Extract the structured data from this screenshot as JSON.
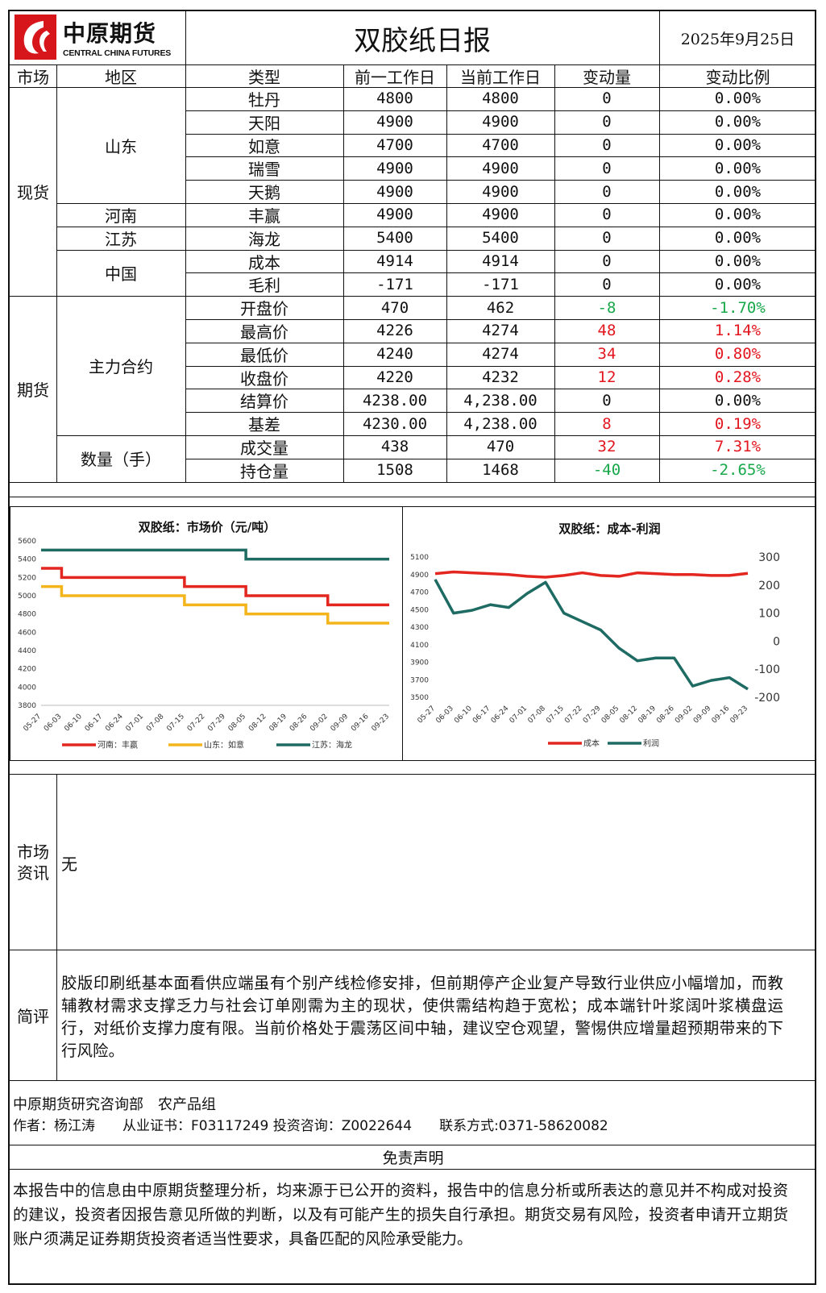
{
  "header": {
    "logo_cn": "中原期货",
    "logo_en": "CENTRAL CHINA FUTURES",
    "title": "双胶纸日报",
    "date": "2025年9月25日"
  },
  "columns": [
    "市场",
    "地区",
    "类型",
    "前一工作日",
    "当前工作日",
    "变动量",
    "变动比例"
  ],
  "spot": {
    "market": "现货",
    "regions": [
      {
        "name": "山东",
        "rows": [
          {
            "type": "牡丹",
            "prev": "4800",
            "curr": "4800",
            "chg": "0",
            "pct": "0.00%",
            "tone": "neutral"
          },
          {
            "type": "天阳",
            "prev": "4900",
            "curr": "4900",
            "chg": "0",
            "pct": "0.00%",
            "tone": "neutral"
          },
          {
            "type": "如意",
            "prev": "4700",
            "curr": "4700",
            "chg": "0",
            "pct": "0.00%",
            "tone": "neutral"
          },
          {
            "type": "瑞雪",
            "prev": "4900",
            "curr": "4900",
            "chg": "0",
            "pct": "0.00%",
            "tone": "neutral"
          },
          {
            "type": "天鹅",
            "prev": "4900",
            "curr": "4900",
            "chg": "0",
            "pct": "0.00%",
            "tone": "neutral"
          }
        ]
      },
      {
        "name": "河南",
        "rows": [
          {
            "type": "丰赢",
            "prev": "4900",
            "curr": "4900",
            "chg": "0",
            "pct": "0.00%",
            "tone": "neutral"
          }
        ]
      },
      {
        "name": "江苏",
        "rows": [
          {
            "type": "海龙",
            "prev": "5400",
            "curr": "5400",
            "chg": "0",
            "pct": "0.00%",
            "tone": "neutral"
          }
        ]
      },
      {
        "name": "中国",
        "rows": [
          {
            "type": "成本",
            "prev": "4914",
            "curr": "4914",
            "chg": "0",
            "pct": "0.00%",
            "tone": "neutral"
          },
          {
            "type": "毛利",
            "prev": "-171",
            "curr": "-171",
            "chg": "0",
            "pct": "0.00%",
            "tone": "neutral"
          }
        ]
      }
    ]
  },
  "futures": {
    "market": "期货",
    "regions": [
      {
        "name": "主力合约",
        "rows": [
          {
            "type": "开盘价",
            "prev": "470",
            "curr": "462",
            "chg": "-8",
            "pct": "-1.70%",
            "tone": "down"
          },
          {
            "type": "最高价",
            "prev": "4226",
            "curr": "4274",
            "chg": "48",
            "pct": "1.14%",
            "tone": "up"
          },
          {
            "type": "最低价",
            "prev": "4240",
            "curr": "4274",
            "chg": "34",
            "pct": "0.80%",
            "tone": "up"
          },
          {
            "type": "收盘价",
            "prev": "4220",
            "curr": "4232",
            "chg": "12",
            "pct": "0.28%",
            "tone": "up"
          },
          {
            "type": "结算价",
            "prev": "4238.00",
            "curr": "4,238.00",
            "chg": "0",
            "pct": "0.00%",
            "tone": "neutral"
          },
          {
            "type": "基差",
            "prev": "4230.00",
            "curr": "4,238.00",
            "chg": "8",
            "pct": "0.19%",
            "tone": "up"
          }
        ]
      },
      {
        "name": "数量（手）",
        "rows": [
          {
            "type": "成交量",
            "prev": "438",
            "curr": "470",
            "chg": "32",
            "pct": "7.31%",
            "tone": "up"
          },
          {
            "type": "持仓量",
            "prev": "1508",
            "curr": "1468",
            "chg": "-40",
            "pct": "-2.65%",
            "tone": "down"
          }
        ]
      }
    ]
  },
  "colors": {
    "up": "#e3161f",
    "down": "#17a84a",
    "neutral": "#111111",
    "logo_red": "#d7161c"
  },
  "chart_data": [
    {
      "type": "line",
      "title": "双胶纸：市场价（元/吨）",
      "x": [
        "05-27",
        "06-03",
        "06-10",
        "06-17",
        "06-24",
        "07-01",
        "07-08",
        "07-15",
        "07-22",
        "07-29",
        "08-05",
        "08-12",
        "08-19",
        "08-26",
        "09-02",
        "09-09",
        "09-16",
        "09-23"
      ],
      "ylim": [
        3800,
        5600
      ],
      "yticks": [
        3800,
        4000,
        4200,
        4400,
        4600,
        4800,
        5000,
        5200,
        5400,
        5600
      ],
      "legend": "bottom",
      "series": [
        {
          "name": "河南：丰赢",
          "color": "#e3261f",
          "values": [
            5300,
            5200,
            5200,
            5200,
            5200,
            5200,
            5200,
            5100,
            5100,
            5100,
            5000,
            5000,
            5000,
            5000,
            4900,
            4900,
            4900,
            4900
          ]
        },
        {
          "name": "山东：如意",
          "color": "#f3b51b",
          "values": [
            5100,
            5000,
            5000,
            5000,
            5000,
            5000,
            5000,
            4900,
            4900,
            4900,
            4800,
            4800,
            4800,
            4800,
            4700,
            4700,
            4700,
            4700
          ]
        },
        {
          "name": "江苏：海龙",
          "color": "#1e6b63",
          "values": [
            5500,
            5500,
            5500,
            5500,
            5500,
            5500,
            5500,
            5500,
            5500,
            5500,
            5400,
            5400,
            5400,
            5400,
            5400,
            5400,
            5400,
            5400
          ]
        }
      ]
    },
    {
      "type": "line",
      "title": "双胶纸：成本-利润",
      "x": [
        "05-27",
        "06-03",
        "06-10",
        "06-17",
        "06-24",
        "07-01",
        "07-08",
        "07-15",
        "07-22",
        "07-29",
        "08-05",
        "08-12",
        "08-19",
        "08-26",
        "09-02",
        "09-09",
        "09-16",
        "09-23"
      ],
      "ylim_left": [
        3500,
        5100
      ],
      "yticks_left": [
        3500,
        3700,
        3900,
        4100,
        4300,
        4500,
        4700,
        4900,
        5100
      ],
      "ylim_right": [
        -200,
        300
      ],
      "yticks_right": [
        -200,
        -100,
        0,
        100,
        200,
        300
      ],
      "legend": "bottom",
      "series": [
        {
          "name": "成本",
          "axis": "left",
          "color": "#e3261f",
          "values": [
            4910,
            4930,
            4920,
            4910,
            4900,
            4880,
            4870,
            4890,
            4920,
            4890,
            4880,
            4920,
            4910,
            4900,
            4900,
            4890,
            4890,
            4914
          ]
        },
        {
          "name": "利润",
          "axis": "right",
          "color": "#1e6b63",
          "values": [
            220,
            100,
            110,
            130,
            120,
            170,
            210,
            100,
            70,
            40,
            -25,
            -70,
            -60,
            -60,
            -160,
            -140,
            -130,
            -171
          ]
        }
      ]
    }
  ],
  "news": {
    "label": "市场资讯",
    "label_l1": "市场",
    "label_l2": "资讯",
    "text": "无"
  },
  "comment": {
    "label": "简评",
    "text": "胶版印刷纸基本面看供应端虽有个别产线检修安排，但前期停产企业复产导致行业供应小幅增加，而教辅教材需求支撑乏力与社会订单刚需为主的现状，使供需结构趋于宽松；成本端针叶浆阔叶浆横盘运行，对纸价支撑力度有限。当前价格处于震荡区间中轴，建议空仓观望，警惕供应增量超预期带来的下行风险。"
  },
  "footer": {
    "dept": "中原期货研究咨询部　农产品组",
    "author": "作者：杨江涛　　从业证书：F03117249 投资咨询：Z0022644　　联系方式:0371-58620082",
    "disclaimer_title": "免责声明",
    "disclaimer": "本报告中的信息由中原期货整理分析，均来源于已公开的资料，报告中的信息分析或所表达的意见并不构成对投资的建议，投资者因报告意见所做的判断，以及有可能产生的损失自行承担。期货交易有风险，投资者申请开立期货账户须满足证券期货投资者适当性要求，具备匹配的风险承受能力。"
  }
}
